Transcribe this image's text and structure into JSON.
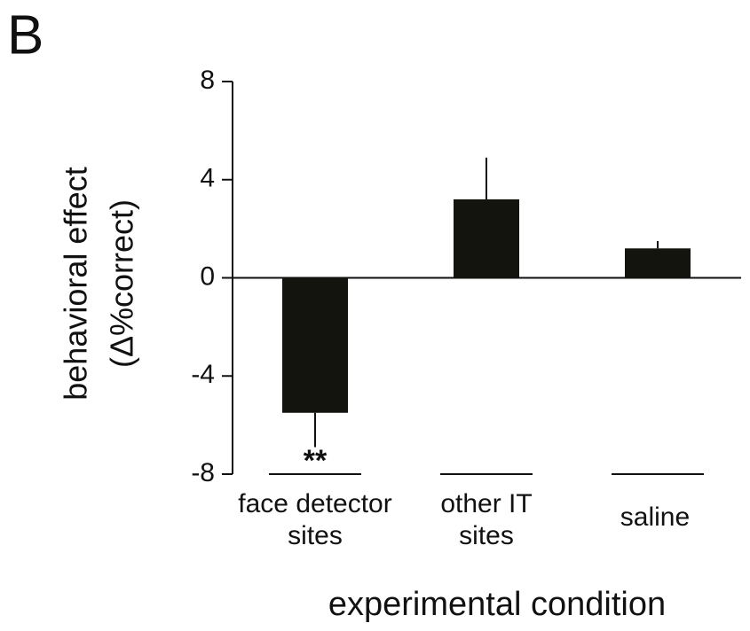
{
  "chart_data": {
    "type": "bar",
    "panel_label": "B",
    "ylabel": [
      "behavioral effect",
      "(Δ%correct)"
    ],
    "xlabel": "experimental condition",
    "categories": [
      [
        "face detector",
        "sites"
      ],
      [
        "other IT",
        "sites"
      ],
      [
        "saline"
      ]
    ],
    "values": [
      -5.5,
      3.2,
      1.2
    ],
    "errors": [
      1.4,
      1.7,
      0.3
    ],
    "annotation": "**",
    "color": "#14140f",
    "ylim": [
      -8,
      8
    ],
    "yticks": [
      -8,
      -4,
      0,
      4,
      8
    ],
    "grid": false
  }
}
